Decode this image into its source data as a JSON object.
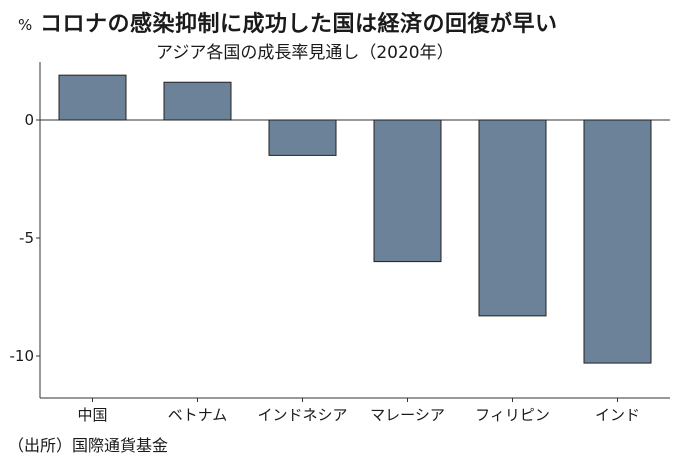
{
  "title": "コロナの感染抑制に成功した国は経済の回復が早い",
  "subtitle": "アジア各国の成長率見通し（2020年）",
  "source": "（出所）国際通貨基金",
  "chart_data": {
    "type": "bar",
    "unit": "%",
    "categories": [
      "中国",
      "ベトナム",
      "インドネシア",
      "マレーシア",
      "フィリピン",
      "インド"
    ],
    "values": [
      1.9,
      1.6,
      -1.5,
      -6.0,
      -8.3,
      -10.3
    ],
    "ylim": [
      -11.5,
      2.5
    ],
    "yticks": [
      0,
      -5,
      -10
    ],
    "ytick_labels": [
      "0",
      "-5",
      "-10"
    ],
    "bar_color": "#6b8299",
    "grid": false,
    "legend": "none"
  }
}
